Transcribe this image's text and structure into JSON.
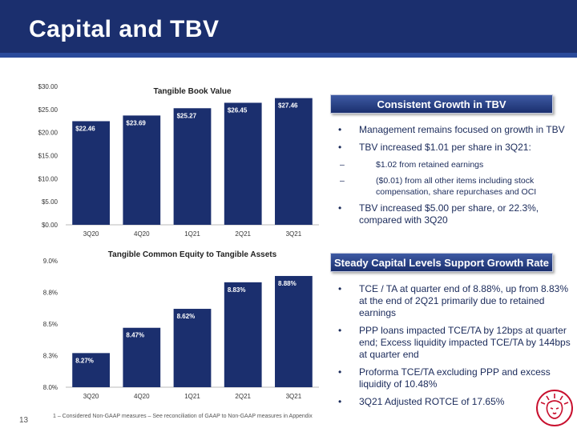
{
  "slide": {
    "title": "Capital and TBV",
    "page_number": "13",
    "footnote": "1 – Considered Non-GAAP measures – See reconciliation of GAAP to Non-GAAP measures in Appendix"
  },
  "colors": {
    "header_bg": "#1b2f6e",
    "bar_fill": "#1b2f6e",
    "text_blue": "#1a2a5a",
    "logo_red": "#c8102e"
  },
  "sections": {
    "tbv": {
      "banner": "Consistent Growth in TBV",
      "bullets": [
        {
          "text": "Management remains focused on growth in TBV",
          "subs": []
        },
        {
          "text": "TBV increased $1.01 per share in 3Q21:",
          "subs": [
            "$1.02 from retained earnings",
            "($0.01) from all other items including stock compensation, share repurchases and OCI"
          ]
        },
        {
          "text": "TBV increased $5.00 per share, or 22.3%, compared with 3Q20",
          "subs": []
        }
      ]
    },
    "capital": {
      "banner": "Steady Capital Levels Support Growth Rate",
      "bullets": [
        {
          "text": "TCE / TA at quarter end of 8.88%, up from 8.83% at the end of 2Q21 primarily due to retained earnings",
          "subs": []
        },
        {
          "text": "PPP loans impacted TCE/TA by 12bps at quarter end; Excess liquidity impacted TCE/TA by 144bps at quarter end",
          "subs": []
        },
        {
          "text": "Proforma TCE/TA excluding PPP and excess liquidity of 10.48%",
          "subs": []
        },
        {
          "text": "3Q21 Adjusted ROTCE of 17.65%",
          "subs": []
        }
      ]
    }
  },
  "chart_data": [
    {
      "type": "bar",
      "title": "Tangible Book Value",
      "categories": [
        "3Q20",
        "4Q20",
        "1Q21",
        "2Q21",
        "3Q21"
      ],
      "values": [
        22.46,
        23.69,
        25.27,
        26.45,
        27.46
      ],
      "data_labels": [
        "$22.46",
        "$23.69",
        "$25.27",
        "$26.45",
        "$27.46"
      ],
      "yticks": [
        "$0.00",
        "$5.00",
        "$10.00",
        "$15.00",
        "$20.00",
        "$25.00",
        "$30.00"
      ],
      "ylim": [
        0,
        30
      ],
      "grid": false,
      "legend": "none"
    },
    {
      "type": "bar",
      "title": "Tangible Common Equity to Tangible Assets",
      "categories": [
        "3Q20",
        "4Q20",
        "1Q21",
        "2Q21",
        "3Q21"
      ],
      "values": [
        8.27,
        8.47,
        8.62,
        8.83,
        8.88
      ],
      "data_labels": [
        "8.27%",
        "8.47%",
        "8.62%",
        "8.83%",
        "8.88%"
      ],
      "yticks": [
        "8.0%",
        "8.3%",
        "8.5%",
        "8.8%",
        "9.0%"
      ],
      "ylim": [
        8.0,
        9.0
      ],
      "grid": false,
      "legend": "none"
    }
  ]
}
